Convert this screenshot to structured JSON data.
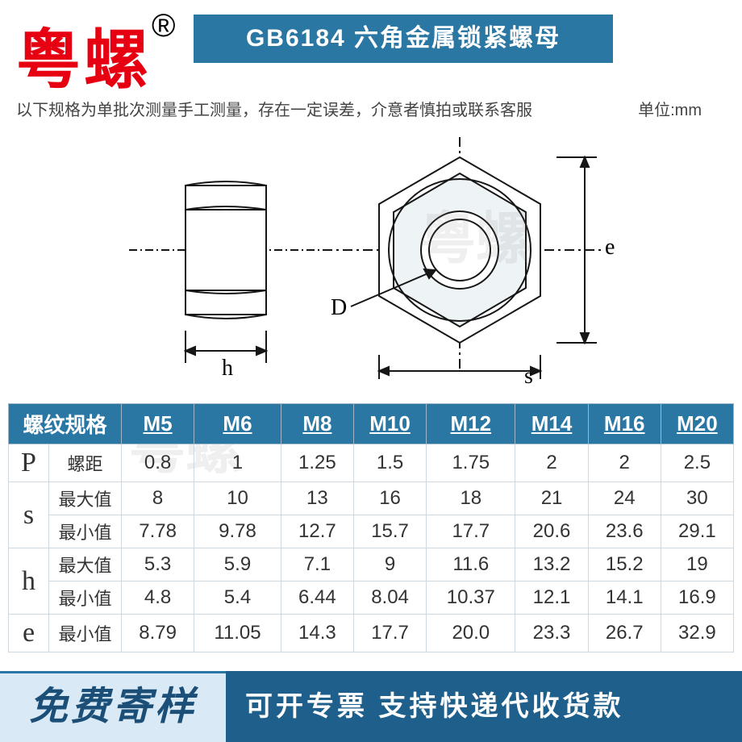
{
  "brand_text": "粤螺",
  "brand_mark": "®",
  "title_bar": "GB6184 六角金属锁紧螺母",
  "disclaimer": "以下规格为单批次测量手工测量，存在一定误差，介意者慎拍或联系客服",
  "unit_label": "单位:mm",
  "diagram": {
    "labels": {
      "h": "h",
      "D": "D",
      "s": "s",
      "e": "e"
    },
    "stroke_color": "#161616",
    "fill_light": "#dfe6ea"
  },
  "table": {
    "header_bg": "#2b77a3",
    "header_fg": "#ffffff",
    "spec_label": "螺纹规格",
    "sizes": [
      "M5",
      "M6",
      "M8",
      "M10",
      "M12",
      "M14",
      "M16",
      "M20"
    ],
    "rows": [
      {
        "group": "P",
        "sub": "螺距",
        "vals": [
          "0.8",
          "1",
          "1.25",
          "1.5",
          "1.75",
          "2",
          "2",
          "2.5"
        ]
      },
      {
        "group": "s",
        "sub": "最大值",
        "vals": [
          "8",
          "10",
          "13",
          "16",
          "18",
          "21",
          "24",
          "30"
        ]
      },
      {
        "group": "",
        "sub": "最小值",
        "vals": [
          "7.78",
          "9.78",
          "12.7",
          "15.7",
          "17.7",
          "20.6",
          "23.6",
          "29.1"
        ]
      },
      {
        "group": "h",
        "sub": "最大值",
        "vals": [
          "5.3",
          "5.9",
          "7.1",
          "9",
          "11.6",
          "13.2",
          "15.2",
          "19"
        ]
      },
      {
        "group": "",
        "sub": "最小值",
        "vals": [
          "4.8",
          "5.4",
          "6.44",
          "8.04",
          "10.37",
          "12.1",
          "14.1",
          "16.9"
        ]
      },
      {
        "group": "e",
        "sub": "最小值",
        "vals": [
          "8.79",
          "11.05",
          "14.3",
          "17.7",
          "20.0",
          "23.3",
          "26.7",
          "32.9"
        ]
      }
    ],
    "row_spans": {
      "P": 1,
      "s": 2,
      "h": 2,
      "e": 1
    }
  },
  "bottom": {
    "left_text": "免费寄样",
    "right_text": "可开专票 支持快递代收货款",
    "left_bg": "#d9e9f5",
    "right_bg": "#1f5f8b"
  },
  "watermark_text": "粤螺"
}
